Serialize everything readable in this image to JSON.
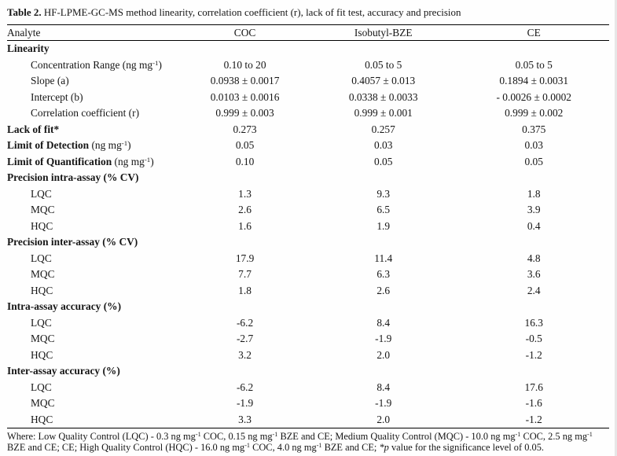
{
  "caption": {
    "label": "Table 2.",
    "text": " HF-LPME-GC-MS method linearity, correlation coefficient (r), lack of fit test, accuracy and precision"
  },
  "columns": [
    "Analyte",
    "COC",
    "Isobutyl-BZE",
    "CE"
  ],
  "table": {
    "rows": [
      {
        "bold": "Linearity",
        "indent": false,
        "values": [
          "",
          "",
          ""
        ]
      },
      {
        "text": "Concentration Range (ng mg",
        "sup": "-1",
        "text2": ")",
        "indent": true,
        "values": [
          "0.10 to 20",
          "0.05 to 5",
          "0.05 to 5"
        ]
      },
      {
        "text": "Slope (a)",
        "indent": true,
        "values": [
          "0.0938 ± 0.0017",
          "0.4057 ± 0.013",
          "0.1894 ± 0.0031"
        ]
      },
      {
        "text": "Intercept (b)",
        "indent": true,
        "values": [
          "0.0103 ± 0.0016",
          "0.0338 ± 0.0033",
          "- 0.0026 ± 0.0002"
        ]
      },
      {
        "text": "Correlation coefficient (r)",
        "indent": true,
        "values": [
          "0.999 ± 0.003",
          "0.999 ± 0.001",
          "0.999 ± 0.002"
        ]
      },
      {
        "bold": "Lack of fit*",
        "indent": false,
        "values": [
          "0.273",
          "0.257",
          "0.375"
        ]
      },
      {
        "bold": "Limit of Detection",
        "text": " (ng mg",
        "sup": "-1",
        "text2": ")",
        "indent": false,
        "values": [
          "0.05",
          "0.03",
          "0.03"
        ]
      },
      {
        "bold": "Limit of Quantification",
        "text": " (ng mg",
        "sup": "-1",
        "text2": ")",
        "indent": false,
        "values": [
          "0.10",
          "0.05",
          "0.05"
        ]
      },
      {
        "bold": "Precision intra-assay (% CV)",
        "indent": false,
        "values": [
          "",
          "",
          ""
        ]
      },
      {
        "text": "LQC",
        "indent": true,
        "values": [
          "1.3",
          "9.3",
          "1.8"
        ]
      },
      {
        "text": "MQC",
        "indent": true,
        "values": [
          "2.6",
          "6.5",
          "3.9"
        ]
      },
      {
        "text": "HQC",
        "indent": true,
        "values": [
          "1.6",
          "1.9",
          "0.4"
        ]
      },
      {
        "bold": "Precision inter-assay (% CV)",
        "indent": false,
        "values": [
          "",
          "",
          ""
        ]
      },
      {
        "text": "LQC",
        "indent": true,
        "values": [
          "17.9",
          "11.4",
          "4.8"
        ]
      },
      {
        "text": "MQC",
        "indent": true,
        "values": [
          "7.7",
          "6.3",
          "3.6"
        ]
      },
      {
        "text": "HQC",
        "indent": true,
        "values": [
          "1.8",
          "2.6",
          "2.4"
        ]
      },
      {
        "bold": "Intra-assay accuracy (%)",
        "indent": false,
        "values": [
          "",
          "",
          ""
        ]
      },
      {
        "text": "LQC",
        "indent": true,
        "values": [
          "-6.2",
          "8.4",
          "16.3"
        ]
      },
      {
        "text": "MQC",
        "indent": true,
        "values": [
          "-2.7",
          "-1.9",
          "-0.5"
        ]
      },
      {
        "text": "HQC",
        "indent": true,
        "values": [
          "3.2",
          "2.0",
          "-1.2"
        ]
      },
      {
        "bold": "Inter-assay accuracy (%)",
        "indent": false,
        "values": [
          "",
          "",
          ""
        ]
      },
      {
        "text": "LQC",
        "indent": true,
        "values": [
          "-6.2",
          "8.4",
          "17.6"
        ]
      },
      {
        "text": "MQC",
        "indent": true,
        "values": [
          "-1.9",
          "-1.9",
          "-1.6"
        ]
      },
      {
        "text": "HQC",
        "indent": true,
        "values": [
          "3.3",
          "2.0",
          "-1.2"
        ]
      }
    ]
  },
  "footnote": {
    "segments": [
      {
        "text": "Where: Low Quality Control (LQC) - 0.3 ng mg"
      },
      {
        "sup": "-1"
      },
      {
        "text": " COC, 0.15 ng mg"
      },
      {
        "sup": "-1"
      },
      {
        "text": " BZE and CE; Medium Quality Control (MQC) - 10.0 ng mg"
      },
      {
        "sup": "-1"
      },
      {
        "text": " COC, 2.5 ng mg"
      },
      {
        "sup": "-1"
      },
      {
        "text": " BZE and CE; CE; High Quality Control (HQC) - 16.0 ng mg"
      },
      {
        "sup": "-1"
      },
      {
        "text": " COC, 4.0 ng mg"
      },
      {
        "sup": "-1"
      },
      {
        "text": " BZE and CE; "
      },
      {
        "italic": "*p"
      },
      {
        "text": " value for the significance level of 0.05."
      }
    ]
  },
  "colors": {
    "text": "#161616",
    "rule": "#000000",
    "background": "#fefefe"
  }
}
